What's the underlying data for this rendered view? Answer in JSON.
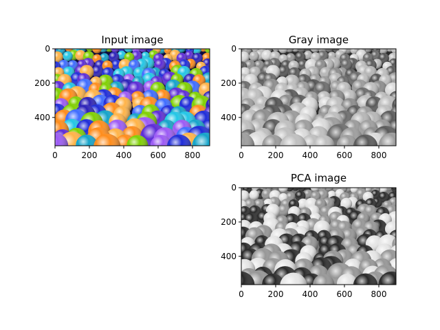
{
  "chart_data": [
    {
      "type": "image",
      "title": "Input image",
      "style": "color",
      "xlim": [
        0,
        900
      ],
      "ylim": [
        565,
        0
      ],
      "x_ticks": [
        0,
        200,
        400,
        600,
        800
      ],
      "y_ticks": [
        0,
        200,
        400
      ]
    },
    {
      "type": "image",
      "title": "Gray image",
      "style": "gray",
      "xlim": [
        0,
        900
      ],
      "ylim": [
        565,
        0
      ],
      "x_ticks": [
        0,
        200,
        400,
        600,
        800
      ],
      "y_ticks": [
        0,
        200,
        400
      ]
    },
    {
      "type": "image",
      "title": "PCA image",
      "style": "pca",
      "xlim": [
        0,
        900
      ],
      "ylim": [
        565,
        0
      ],
      "x_ticks": [
        0,
        200,
        400,
        600,
        800
      ],
      "y_ticks": [
        0,
        200,
        400
      ]
    }
  ],
  "colors": {
    "balls": [
      "#1e2bd8",
      "#3d6bff",
      "#ff8c1a",
      "#7fd000",
      "#21c6e6",
      "#9b59f5",
      "#2a1fb8",
      "#ffb347",
      "#13a3c9",
      "#5b2ad6"
    ]
  }
}
